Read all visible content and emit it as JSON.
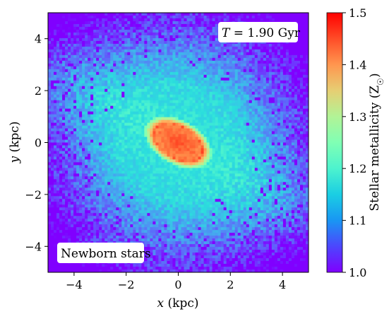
{
  "chart_data": {
    "type": "heatmap",
    "title": "",
    "xlabel": "x (kpc)",
    "ylabel": "y (kpc)",
    "xlim": [
      -5,
      5
    ],
    "ylim": [
      -5,
      5
    ],
    "xticks": [
      -4,
      -2,
      0,
      2,
      4
    ],
    "yticks": [
      -4,
      -2,
      0,
      2,
      4
    ],
    "x_tick_labels": [
      "−4",
      "−2",
      "0",
      "2",
      "4"
    ],
    "y_tick_labels": [
      "−4",
      "−2",
      "0",
      "2",
      "4"
    ],
    "grid": false,
    "colormap": "rainbow",
    "colorbar": {
      "label": "Stellar metallicity (Z☉)",
      "range": [
        1.0,
        1.5
      ],
      "ticks": [
        1.0,
        1.1,
        1.2,
        1.3,
        1.4,
        1.5
      ],
      "tick_labels": [
        "1.0",
        "1.1",
        "1.2",
        "1.3",
        "1.4",
        "1.5"
      ]
    },
    "annotations": {
      "time_label": "T = 1.90 Gyr",
      "population_label": "Newborn stars"
    },
    "features": {
      "core_metallicity": 1.45,
      "disk_metallicity": 1.15,
      "outskirts_metallicity": 1.02,
      "bar_orientation": "tilted from upper-left to lower-right",
      "core_extent_kpc": [
        1.0,
        0.6
      ]
    }
  },
  "labels": {
    "x_axis_var": "x",
    "x_axis_unit": " (kpc)",
    "y_axis_var": "y",
    "y_axis_unit": " (kpc)",
    "cbar_prefix": "Stellar metallicity (Z",
    "cbar_sun": "☉",
    "cbar_suffix": ")",
    "time_var": "T",
    "time_value": " = 1.90 Gyr",
    "population": "Newborn stars"
  }
}
